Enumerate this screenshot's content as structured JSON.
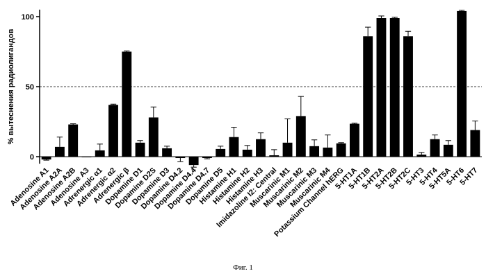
{
  "caption": "Фиг. 1",
  "chart_data": {
    "type": "bar",
    "title": "",
    "xlabel": "",
    "ylabel": "% вытеснения радиолигандов",
    "ylim": [
      -5,
      105
    ],
    "yticks": [
      0,
      50,
      100
    ],
    "reference_line": 50,
    "grid": false,
    "bar_color": "#000000",
    "categories": [
      "Adenosine A1",
      "Adenosine A2A",
      "Adenosine A2B",
      "Adenosine A3",
      "Adrenergic α1",
      "Adrenergic α2",
      "Adrenergic β",
      "Dopamine D1",
      "Dopamine D2S",
      "Dopamine D3",
      "Dopamine D4.2",
      "Dopamine D4.4",
      "Dopamine D4.7",
      "Dopamine D5",
      "Histamine H1",
      "Histamine H2",
      "Histamine H3",
      "Imidazoline I2: Central",
      "Muscarinic M1",
      "Muscarinic M2",
      "Muscarinic M3",
      "Muscarinic M4",
      "Potassium Channel hERG",
      "5-HT1A",
      "5-HT1B",
      "5-HT2A",
      "5-HT2B",
      "5-HT2C",
      "5-HT3",
      "5-HT4",
      "5-HT5A",
      "5-HT6",
      "5-HT7"
    ],
    "values": [
      -2,
      7,
      23,
      0,
      4.5,
      37,
      75,
      10,
      28,
      6,
      -1,
      -6,
      -1,
      5.5,
      14,
      5,
      12.5,
      1,
      10,
      29,
      7.5,
      6.5,
      9.5,
      23.5,
      86,
      99,
      99,
      86,
      1.5,
      12.5,
      8.5,
      104,
      19
    ],
    "errors": [
      0.5,
      7,
      0.5,
      0,
      4.5,
      0.5,
      0.5,
      1.5,
      7.5,
      1.5,
      2.5,
      1.5,
      0.5,
      2,
      7,
      3,
      4.5,
      4,
      17,
      14,
      4.5,
      9,
      0.5,
      0.5,
      6.5,
      1.5,
      0.5,
      3.5,
      1.5,
      3,
      3,
      0.5,
      6.5
    ]
  }
}
